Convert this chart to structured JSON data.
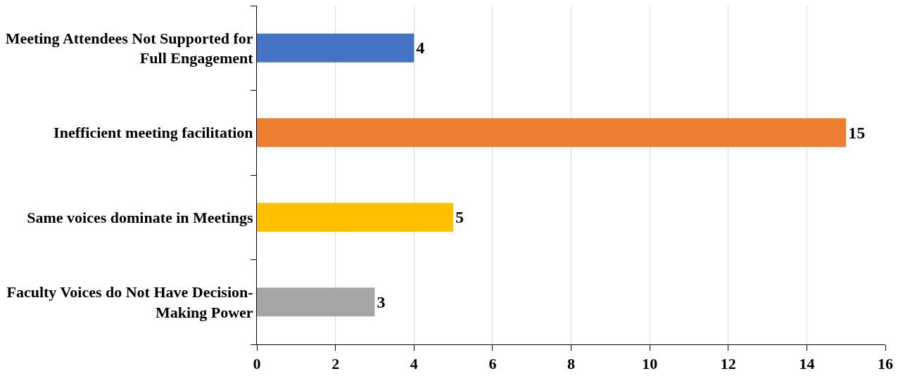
{
  "chart_data": {
    "type": "bar",
    "orientation": "horizontal",
    "categories": [
      "Meeting Attendees Not Supported for Full Engagement",
      "Inefficient meeting facilitation",
      "Same voices dominate in Meetings",
      "Faculty Voices do Not Have Decision-Making Power"
    ],
    "values": [
      4,
      15,
      5,
      3
    ],
    "colors": [
      "#4472c4",
      "#ed7d31",
      "#ffc000",
      "#a5a5a5"
    ],
    "xlim": [
      0,
      16
    ],
    "xticks": [
      0,
      2,
      4,
      6,
      8,
      10,
      12,
      14,
      16
    ],
    "grid": "x",
    "data_labels": true
  }
}
